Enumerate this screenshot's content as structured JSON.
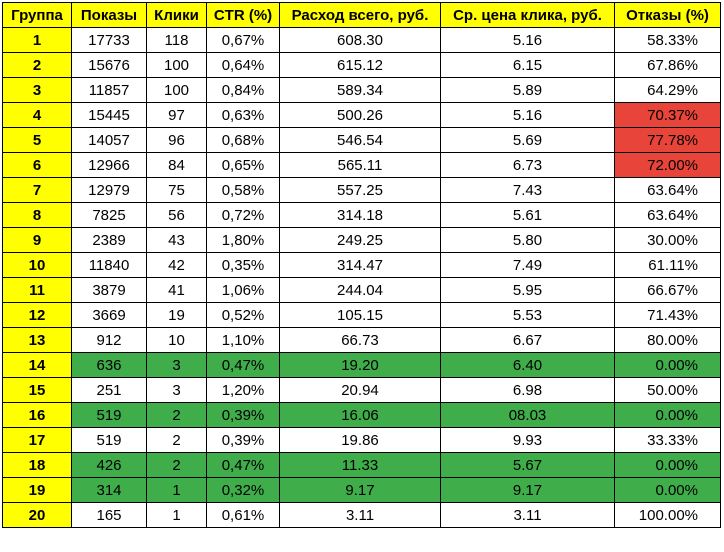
{
  "colors": {
    "header_bg": "#ffff00",
    "group_bg": "#ffff00",
    "highlight_green": "#3fad4a",
    "highlight_red": "#e8443a"
  },
  "table": {
    "headers": [
      "Группа",
      "Показы",
      "Клики",
      "CTR (%)",
      "Расход всего, руб.",
      "Ср. цена клика, руб.",
      "Отказы (%)"
    ],
    "rows": [
      {
        "cells": [
          "1",
          "17733",
          "118",
          "0,67%",
          "608.30",
          "5.16",
          "58.33%"
        ],
        "row_highlight": "none",
        "bounce_highlight": "none"
      },
      {
        "cells": [
          "2",
          "15676",
          "100",
          "0,64%",
          "615.12",
          "6.15",
          "67.86%"
        ],
        "row_highlight": "none",
        "bounce_highlight": "none"
      },
      {
        "cells": [
          "3",
          "11857",
          "100",
          "0,84%",
          "589.34",
          "5.89",
          "64.29%"
        ],
        "row_highlight": "none",
        "bounce_highlight": "none"
      },
      {
        "cells": [
          "4",
          "15445",
          "97",
          "0,63%",
          "500.26",
          "5.16",
          "70.37%"
        ],
        "row_highlight": "none",
        "bounce_highlight": "red"
      },
      {
        "cells": [
          "5",
          "14057",
          "96",
          "0,68%",
          "546.54",
          "5.69",
          "77.78%"
        ],
        "row_highlight": "none",
        "bounce_highlight": "red"
      },
      {
        "cells": [
          "6",
          "12966",
          "84",
          "0,65%",
          "565.11",
          "6.73",
          "72.00%"
        ],
        "row_highlight": "none",
        "bounce_highlight": "red"
      },
      {
        "cells": [
          "7",
          "12979",
          "75",
          "0,58%",
          "557.25",
          "7.43",
          "63.64%"
        ],
        "row_highlight": "none",
        "bounce_highlight": "none"
      },
      {
        "cells": [
          "8",
          "7825",
          "56",
          "0,72%",
          "314.18",
          "5.61",
          "63.64%"
        ],
        "row_highlight": "none",
        "bounce_highlight": "none"
      },
      {
        "cells": [
          "9",
          "2389",
          "43",
          "1,80%",
          "249.25",
          "5.80",
          "30.00%"
        ],
        "row_highlight": "none",
        "bounce_highlight": "none"
      },
      {
        "cells": [
          "10",
          "11840",
          "42",
          "0,35%",
          "314.47",
          "7.49",
          "61.11%"
        ],
        "row_highlight": "none",
        "bounce_highlight": "none"
      },
      {
        "cells": [
          "11",
          "3879",
          "41",
          "1,06%",
          "244.04",
          "5.95",
          "66.67%"
        ],
        "row_highlight": "none",
        "bounce_highlight": "none"
      },
      {
        "cells": [
          "12",
          "3669",
          "19",
          "0,52%",
          "105.15",
          "5.53",
          "71.43%"
        ],
        "row_highlight": "none",
        "bounce_highlight": "none"
      },
      {
        "cells": [
          "13",
          "912",
          "10",
          "1,10%",
          "66.73",
          "6.67",
          "80.00%"
        ],
        "row_highlight": "none",
        "bounce_highlight": "none"
      },
      {
        "cells": [
          "14",
          "636",
          "3",
          "0,47%",
          "19.20",
          "6.40",
          "0.00%"
        ],
        "row_highlight": "green",
        "bounce_highlight": "none"
      },
      {
        "cells": [
          "15",
          "251",
          "3",
          "1,20%",
          "20.94",
          "6.98",
          "50.00%"
        ],
        "row_highlight": "none",
        "bounce_highlight": "none"
      },
      {
        "cells": [
          "16",
          "519",
          "2",
          "0,39%",
          "16.06",
          "08.03",
          "0.00%"
        ],
        "row_highlight": "green",
        "bounce_highlight": "none"
      },
      {
        "cells": [
          "17",
          "519",
          "2",
          "0,39%",
          "19.86",
          "9.93",
          "33.33%"
        ],
        "row_highlight": "none",
        "bounce_highlight": "none"
      },
      {
        "cells": [
          "18",
          "426",
          "2",
          "0,47%",
          "11.33",
          "5.67",
          "0.00%"
        ],
        "row_highlight": "green",
        "bounce_highlight": "none"
      },
      {
        "cells": [
          "19",
          "314",
          "1",
          "0,32%",
          "9.17",
          "9.17",
          "0.00%"
        ],
        "row_highlight": "green",
        "bounce_highlight": "none"
      },
      {
        "cells": [
          "20",
          "165",
          "1",
          "0,61%",
          "3.11",
          "3.11",
          "100.00%"
        ],
        "row_highlight": "none",
        "bounce_highlight": "none"
      }
    ]
  }
}
